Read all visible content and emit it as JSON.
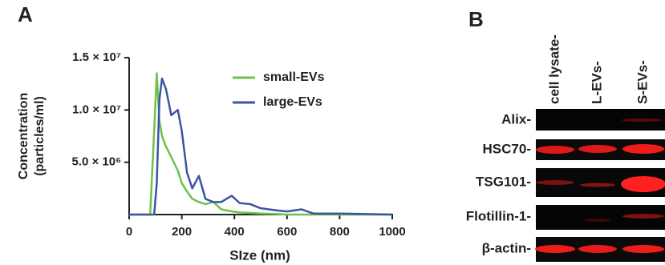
{
  "panels": [
    "A",
    "B"
  ],
  "chart_data": {
    "type": "line",
    "xlabel": "SIze (nm)",
    "ylabel": [
      "Concentration",
      "(particles/ml)"
    ],
    "x": [
      0,
      80,
      95,
      105,
      115,
      125,
      140,
      160,
      185,
      200,
      220,
      240,
      265,
      290,
      320,
      350,
      390,
      420,
      460,
      500,
      560,
      600,
      655,
      700,
      800,
      1000
    ],
    "series": [
      {
        "name": "small-EVs",
        "color": "#6cc24a",
        "values": [
          0,
          0,
          8000000,
          13500000,
          9000000,
          7500000,
          6500000,
          5500000,
          4200000,
          3000000,
          2200000,
          1500000,
          1200000,
          1000000,
          1200000,
          500000,
          300000,
          200000,
          150000,
          100000,
          50000,
          0,
          0,
          0,
          0,
          0
        ]
      },
      {
        "name": "large-EVs",
        "color": "#3b55a3",
        "values": [
          0,
          0,
          0,
          3000000,
          11000000,
          13000000,
          12000000,
          9500000,
          10000000,
          8000000,
          4000000,
          2500000,
          3700000,
          1500000,
          1200000,
          1200000,
          1800000,
          1100000,
          1000000,
          600000,
          400000,
          300000,
          500000,
          100000,
          100000,
          0
        ]
      }
    ],
    "xlim": [
      0,
      1000
    ],
    "xticks": [
      0,
      200,
      400,
      600,
      800,
      1000
    ],
    "ylim": [
      0,
      15000000
    ],
    "yticks": [
      {
        "value": 5000000,
        "label": "5.0 × 10⁶"
      },
      {
        "value": 10000000,
        "label": "1.0 × 10⁷"
      },
      {
        "value": 15000000,
        "label": "1.5 × 10⁷"
      }
    ],
    "legend": "upper right"
  },
  "blot": {
    "lanes": [
      "cell lysate-",
      "L-EVs-",
      "S-EVs-"
    ],
    "rows": [
      "Alix-",
      "HSC70-",
      "TSG101-",
      "Flotillin-1-",
      "β-actin-"
    ]
  }
}
